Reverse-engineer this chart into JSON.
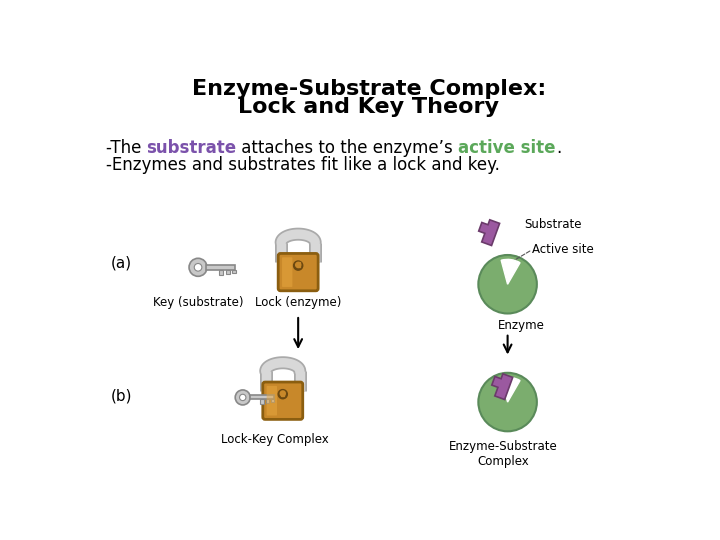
{
  "title_line1": "Enzyme-Substrate Complex:",
  "title_line2": "Lock and Key Theory",
  "title_fontsize": 16,
  "text1_plain_before": "-The ",
  "text1_substrate": "substrate",
  "text1_middle": " attaches to the enzyme’s ",
  "text1_active": "active site",
  "text1_end": ".",
  "text2": "-Enzymes and substrates fit like a lock and key.",
  "text_fontsize": 12,
  "background_color": "#ffffff",
  "label_a": "(a)",
  "label_b": "(b)",
  "label_key_substrate": "Key (substrate)",
  "label_lock_enzyme": "Lock (enzyme)",
  "label_lock_key_complex": "Lock-Key Complex",
  "label_enzyme_substrate_complex": "Enzyme-Substrate\nComplex",
  "label_substrate": "Substrate",
  "label_active_site": "Active site",
  "label_enzyme": "Enzyme",
  "enzyme_color": "#7BAD6E",
  "substrate_color": "#9B59A0",
  "lock_body_color": "#C8882A",
  "lock_body_edge": "#8B5E10",
  "shackle_color_light": "#D8D8D8",
  "shackle_color_dark": "#AAAAAA",
  "key_color": "#C8C8C8",
  "key_edge": "#888888",
  "text_substrate_color": "#7B52AB",
  "text_active_color": "#5BA85A"
}
